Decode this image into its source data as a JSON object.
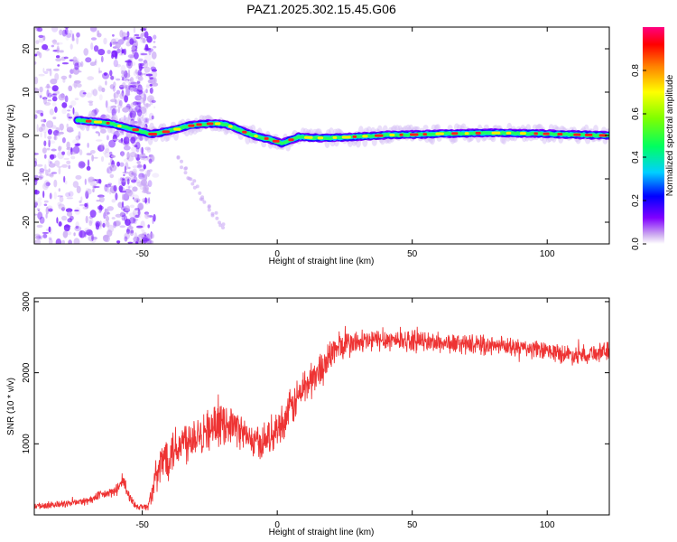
{
  "title": "PAZ1.2025.302.15.45.G06",
  "chart_data": [
    {
      "type": "heatmap",
      "title": "PAZ1.2025.302.15.45.G06",
      "xlabel": "Height of straight line (km)",
      "ylabel": "Frequency (Hz)",
      "xlim": [
        -90,
        123
      ],
      "ylim": [
        -25,
        25
      ],
      "xticks": [
        -50,
        0,
        50,
        100
      ],
      "xtick_labels": [
        "-50",
        "0",
        "50",
        "100"
      ],
      "yticks": [
        -20,
        -10,
        0,
        10,
        20
      ],
      "ytick_labels": [
        "-20",
        "-10",
        "0",
        "10",
        "20"
      ],
      "ridge": {
        "description_x": [
          -73,
          -68,
          -62,
          -57,
          -52,
          -47,
          -42,
          -37,
          -33,
          -28,
          -23,
          -19,
          -15,
          -11,
          -6,
          -3,
          0,
          2,
          5,
          8,
          12,
          18,
          25,
          32,
          40,
          50,
          60,
          70,
          80,
          90,
          100,
          110,
          122
        ],
        "frequency_hz": [
          3.5,
          3.2,
          2.8,
          2.0,
          1.2,
          0.3,
          0.8,
          1.5,
          2.2,
          2.6,
          2.8,
          2.5,
          1.6,
          0.5,
          -0.5,
          -0.8,
          -1.5,
          -1.8,
          -1.0,
          -0.3,
          -0.5,
          -0.6,
          -0.4,
          -0.2,
          0.1,
          0.2,
          0.4,
          0.5,
          0.6,
          0.5,
          0.4,
          0.2,
          0.0
        ]
      },
      "colorbar": {
        "label": "Normalized spectral amplitude",
        "range": [
          0,
          1
        ],
        "ticks": [
          0.0,
          0.2,
          0.4,
          0.6,
          0.8
        ],
        "tick_labels": [
          "0.0",
          "0.2",
          "0.4",
          "0.6",
          "0.8"
        ]
      }
    },
    {
      "type": "line",
      "xlabel": "Height of straight line (km)",
      "ylabel": "SNR (10 * v/v)",
      "xlim": [
        -90,
        123
      ],
      "ylim": [
        0,
        3050
      ],
      "xticks": [
        -50,
        0,
        50,
        100
      ],
      "xtick_labels": [
        "-50",
        "0",
        "50",
        "100"
      ],
      "yticks": [
        1000,
        2000,
        3000
      ],
      "ytick_labels": [
        "1000",
        "2000",
        "3000"
      ],
      "color": "#ee3333",
      "series": [
        {
          "name": "SNR",
          "x": [
            -90,
            -80,
            -70,
            -65,
            -60,
            -57,
            -55,
            -52,
            -48,
            -45,
            -42,
            -38,
            -34,
            -30,
            -26,
            -22,
            -18,
            -14,
            -10,
            -6,
            -2,
            2,
            6,
            10,
            14,
            18,
            22,
            26,
            30,
            35,
            40,
            50,
            60,
            70,
            80,
            90,
            100,
            110,
            123
          ],
          "values": [
            120,
            150,
            200,
            280,
            330,
            480,
            250,
            120,
            110,
            500,
            800,
            950,
            1050,
            1150,
            1200,
            1250,
            1300,
            1200,
            1050,
            1000,
            1150,
            1300,
            1550,
            1800,
            1950,
            2150,
            2350,
            2400,
            2420,
            2450,
            2470,
            2450,
            2420,
            2400,
            2380,
            2350,
            2300,
            2250,
            2300
          ]
        }
      ],
      "noise_amplitude": [
        60,
        60,
        70,
        80,
        90,
        150,
        110,
        60,
        60,
        300,
        420,
        420,
        400,
        380,
        360,
        340,
        320,
        300,
        280,
        280,
        300,
        320,
        340,
        340,
        320,
        300,
        280,
        240,
        220,
        200,
        190,
        180,
        170,
        170,
        160,
        160,
        160,
        160,
        160
      ]
    }
  ]
}
